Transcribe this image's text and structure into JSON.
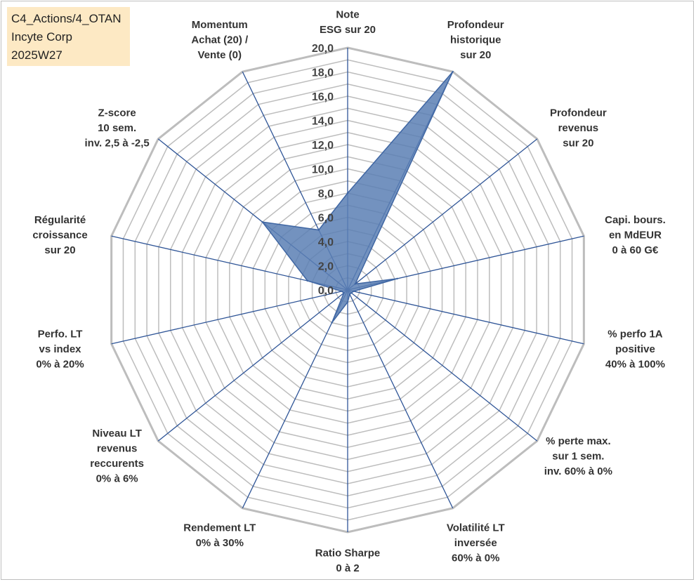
{
  "header": {
    "lines": [
      "C4_Actions/4_OTAN",
      "Incyte Corp",
      "2025W27"
    ]
  },
  "colors": {
    "grid": "#bdbdbd",
    "spoke": "#2f5597",
    "fill": "#5b7fb4",
    "fill_stroke": "#3f66a3",
    "infobox": "#fde9c4"
  },
  "chart_data": {
    "type": "radar",
    "rmin": 0,
    "rmax": 20,
    "tick_step": 1,
    "tick_labels": [
      "0,0",
      "2,0",
      "4,0",
      "6,0",
      "8,0",
      "10,0",
      "12,0",
      "14,0",
      "16,0",
      "18,0",
      "20,0"
    ],
    "grid": true,
    "categories": [
      [
        "Note",
        "ESG sur 20"
      ],
      [
        "Profondeur",
        "historique",
        "sur 20"
      ],
      [
        "Profondeur",
        "revenus",
        "sur 20"
      ],
      [
        "Capi. bours.",
        "en MdEUR",
        "0 à 60 G€"
      ],
      [
        "% perfo 1A",
        "positive",
        "40% à 100%"
      ],
      [
        "% perte max.",
        "sur 1 sem.",
        "inv. 60% à 0%"
      ],
      [
        "Volatilité LT",
        "inversée",
        "60% à 0%"
      ],
      [
        "Ratio Sharpe",
        "0 à 2"
      ],
      [
        "Rendement LT",
        "0% à 30%"
      ],
      [
        "Niveau LT",
        "revenus",
        "reccurents",
        "0% à 6%"
      ],
      [
        "Perfo. LT",
        "vs index",
        "0% à 20%"
      ],
      [
        "Régularité",
        "croissance",
        "sur 20"
      ],
      [
        "Z-score",
        "10 sem.",
        "inv. 2,5 à -2,5"
      ],
      [
        "Momentum",
        "Achat (20) /",
        "Vente (0)"
      ]
    ],
    "series": [
      {
        "values": [
          8.0,
          20.0,
          0.8,
          4.2,
          0.5,
          0.4,
          0.4,
          1.0,
          3.0,
          0.4,
          0.5,
          3.4,
          9.0,
          5.5
        ]
      }
    ]
  }
}
